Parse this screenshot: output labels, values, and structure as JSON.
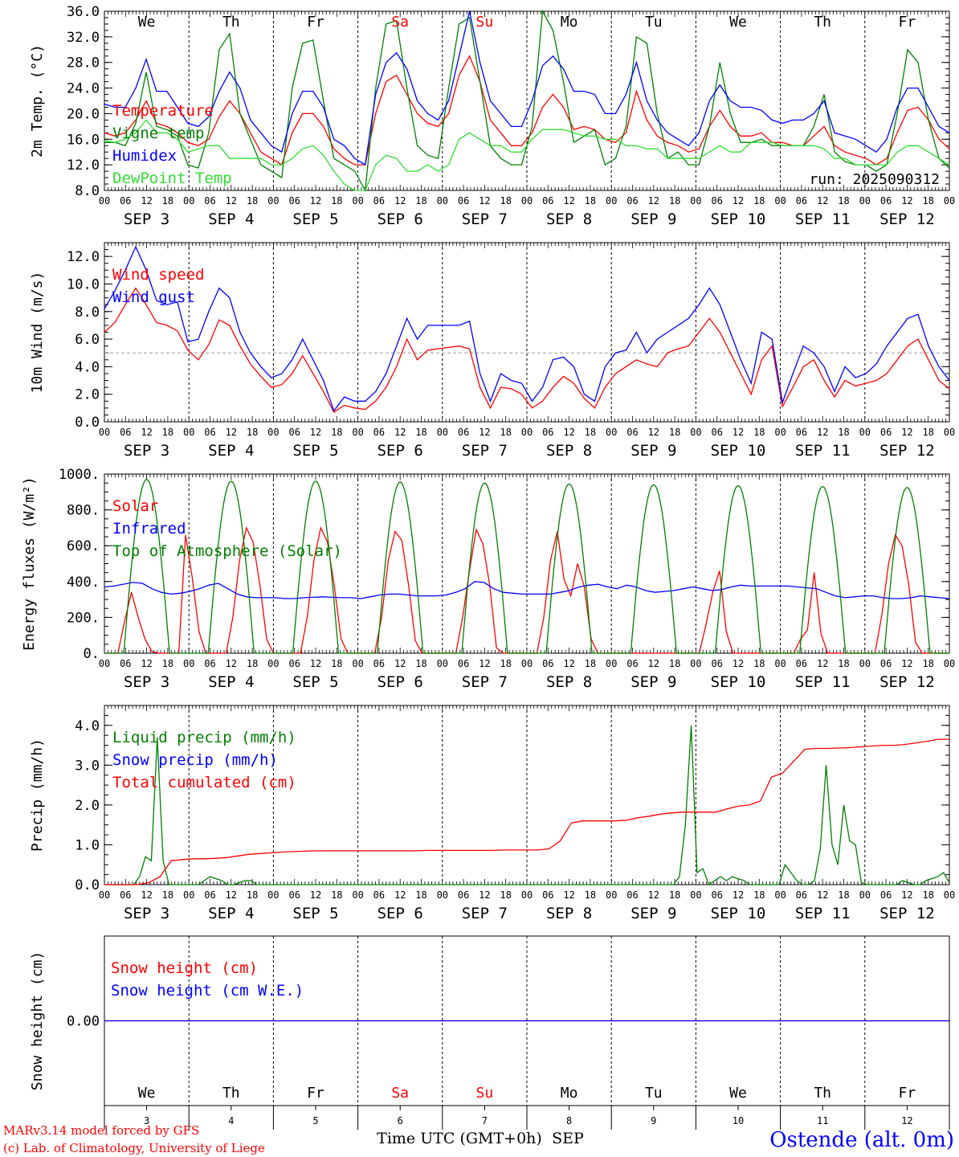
{
  "chart_data": [
    {
      "type": "line",
      "ylabel": "2m Temp. (°C)",
      "ylim": [
        8,
        36
      ],
      "yticks": [
        "8.0",
        "12.0",
        "16.0",
        "20.0",
        "24.0",
        "28.0",
        "32.0",
        "36.0"
      ],
      "run_label": "run: 2025090312",
      "series": [
        {
          "name": "Temperature",
          "color": "#ff0000",
          "values": [
            17,
            16.5,
            17,
            19,
            22,
            18.5,
            18,
            17,
            15.5,
            15,
            16,
            19.5,
            22,
            20,
            17,
            14,
            13,
            12,
            17,
            20,
            20,
            18,
            14.5,
            13,
            12,
            12,
            20,
            25,
            26,
            23,
            20,
            18.5,
            18,
            20,
            26,
            29,
            25,
            19,
            17,
            15,
            15,
            17,
            21,
            23,
            21,
            17.5,
            18,
            17.5,
            16,
            15.5,
            17,
            23.5,
            19,
            16.5,
            15.5,
            15,
            14,
            14.5,
            18,
            20.5,
            18,
            16.5,
            16.5,
            17,
            15.5,
            15.5,
            15,
            15,
            16.5,
            18,
            15,
            14,
            13.5,
            13,
            12,
            13,
            17,
            20.5,
            21,
            19,
            16,
            14.5
          ]
        },
        {
          "name": "Vigne temp",
          "color": "#008000",
          "values": [
            15.5,
            15.5,
            15,
            18.5,
            26.5,
            18,
            17.5,
            16.5,
            12,
            11.5,
            17,
            30,
            32.5,
            20,
            16,
            12,
            11,
            10,
            24,
            31,
            31.5,
            22,
            13,
            12,
            11,
            8,
            24,
            34,
            34.5,
            24,
            15,
            13.5,
            13,
            24,
            34,
            35,
            25,
            15,
            13,
            12,
            12,
            18,
            38,
            33,
            25,
            15.5,
            16.5,
            17.5,
            12,
            13,
            18,
            32,
            31,
            20,
            13,
            14,
            12,
            12,
            18,
            28,
            20,
            15.5,
            15.5,
            16,
            15,
            15,
            15,
            15,
            18,
            23,
            14,
            12.5,
            12,
            12,
            11,
            12,
            20,
            30,
            28,
            19,
            13,
            11.5
          ]
        },
        {
          "name": "Humidex",
          "color": "#0000ff",
          "values": [
            21.5,
            21,
            21,
            24,
            28.5,
            23.5,
            23.5,
            21,
            18.5,
            18,
            19.5,
            23.5,
            26.5,
            24,
            19,
            17,
            15,
            14,
            20,
            23.5,
            23.5,
            21,
            16,
            15,
            13,
            12,
            23,
            28,
            29.5,
            27,
            22,
            20,
            19,
            22,
            29,
            36,
            28,
            22,
            20,
            18,
            18,
            22,
            27.5,
            29,
            27,
            23.5,
            23.5,
            23,
            20,
            20,
            23,
            28,
            22,
            19,
            17,
            16,
            15,
            17,
            22,
            24.5,
            22,
            21,
            21,
            20.5,
            19,
            18.5,
            19,
            19,
            20,
            22,
            17,
            16.5,
            16,
            15,
            14,
            16,
            21,
            24,
            24,
            21,
            18,
            17
          ]
        },
        {
          "name": "DewPoint Temp",
          "color": "#33dd33",
          "values": [
            15.8,
            15.5,
            16,
            17,
            19,
            17,
            17,
            16,
            14,
            14.5,
            15,
            15,
            13,
            13,
            13,
            13,
            12,
            12,
            13,
            14.5,
            15,
            13.5,
            11,
            9,
            8,
            8,
            12,
            13.5,
            13,
            11,
            11,
            12,
            11,
            12,
            16,
            17,
            16,
            15,
            15,
            14,
            14,
            16,
            17.5,
            17.5,
            17.5,
            17,
            16.5,
            16.5,
            16,
            16,
            15,
            15,
            14.5,
            14.5,
            13,
            13,
            13,
            13,
            14,
            15,
            14,
            14,
            15.5,
            15.5,
            15.5,
            15,
            15,
            15,
            15,
            14.5,
            13,
            13,
            12,
            12,
            12,
            12,
            14,
            15,
            15,
            14,
            13,
            12
          ]
        }
      ]
    },
    {
      "type": "line",
      "ylabel": "10m Wind (m/s)",
      "ylim": [
        0,
        13
      ],
      "yticks": [
        "0.0",
        "2.0",
        "4.0",
        "6.0",
        "8.0",
        "10.0",
        "12.0"
      ],
      "reference_line": 5,
      "series": [
        {
          "name": "Wind speed",
          "color": "#ff0000",
          "values": [
            6.5,
            7.2,
            8.5,
            9.7,
            8.5,
            7.2,
            7,
            6.6,
            5.2,
            4.5,
            5.6,
            7.4,
            7,
            5.5,
            4.2,
            3.3,
            2.5,
            2.7,
            3.5,
            4.8,
            3.5,
            2.2,
            0.7,
            1.2,
            1,
            0.9,
            1.5,
            2.5,
            4,
            6,
            4.5,
            5.2,
            5.3,
            5.4,
            5.5,
            5.3,
            2.5,
            1,
            2.5,
            2.4,
            2,
            1,
            1.5,
            2.5,
            3.3,
            2.8,
            1.7,
            1,
            2.5,
            3.5,
            4,
            4.5,
            4.2,
            4,
            5,
            5.3,
            5.5,
            6.5,
            7.5,
            6.5,
            5,
            3.5,
            2,
            4.5,
            5.5,
            1.1,
            2.5,
            4,
            4.5,
            3,
            1.8,
            3,
            2.6,
            2.8,
            3,
            3.5,
            4.5,
            5.5,
            6,
            4.5,
            3,
            2.4
          ]
        },
        {
          "name": "Wind gust",
          "color": "#0000ff",
          "values": [
            8.2,
            9.5,
            11,
            12.7,
            11,
            8.8,
            8.5,
            8.7,
            5.8,
            6,
            8,
            9.7,
            9,
            6.5,
            5,
            4,
            3.2,
            3.5,
            4.5,
            6,
            4.5,
            3,
            0.8,
            1.8,
            1.5,
            1.5,
            2.2,
            3.5,
            5.5,
            7.5,
            6,
            7,
            7,
            7,
            7,
            7.3,
            3.5,
            1.5,
            3.5,
            3,
            2.8,
            1.5,
            2.5,
            4.5,
            4.7,
            4,
            2,
            1.5,
            4,
            5,
            5.2,
            6.5,
            5,
            6,
            6.5,
            7,
            7.5,
            8.5,
            9.7,
            8.5,
            6.5,
            4.5,
            2.8,
            6.5,
            6,
            1.4,
            3.5,
            5.5,
            5,
            4,
            2.2,
            4,
            3.2,
            3.5,
            4.2,
            5.5,
            6.5,
            7.5,
            7.8,
            5.5,
            4,
            3
          ]
        }
      ]
    },
    {
      "type": "line",
      "ylabel": "Energy fluxes (W/m²)",
      "ylim": [
        0,
        1000
      ],
      "yticks": [
        "0.",
        "200.",
        "400.",
        "600.",
        "800.",
        "1000."
      ],
      "series": [
        {
          "name": "Solar",
          "color": "#ff0000",
          "values": [
            0,
            0,
            0,
            180,
            340,
            200,
            80,
            10,
            0,
            0,
            0,
            0,
            660,
            420,
            120,
            0,
            0,
            0,
            0,
            200,
            520,
            700,
            620,
            380,
            80,
            0,
            0,
            0,
            0,
            0,
            200,
            520,
            700,
            620,
            380,
            80,
            0,
            0,
            0,
            0,
            0,
            200,
            520,
            680,
            630,
            380,
            70,
            0,
            0,
            0,
            0,
            0,
            0,
            200,
            460,
            690,
            610,
            380,
            30,
            0,
            0,
            0,
            0,
            0,
            0,
            200,
            520,
            680,
            410,
            320,
            500,
            370,
            80,
            0,
            0,
            0,
            0,
            0,
            0,
            0,
            0,
            0,
            0,
            0,
            0,
            0,
            0,
            0,
            0,
            160,
            340,
            460,
            120,
            0,
            0,
            0,
            0,
            0,
            0,
            0,
            0,
            0,
            0,
            80,
            130,
            450,
            110,
            0,
            0,
            0,
            0,
            0,
            0,
            0,
            0,
            210,
            500,
            660,
            600,
            380,
            60,
            0,
            0,
            0,
            0,
            0
          ]
        },
        {
          "name": "Infrared",
          "color": "#0000ff",
          "values": [
            370,
            375,
            385,
            395,
            390,
            360,
            340,
            330,
            335,
            345,
            360,
            380,
            390,
            360,
            330,
            315,
            310,
            310,
            310,
            305,
            305,
            310,
            312,
            315,
            312,
            310,
            310,
            305,
            315,
            325,
            330,
            330,
            325,
            320,
            320,
            320,
            325,
            340,
            360,
            400,
            395,
            360,
            340,
            335,
            330,
            330,
            330,
            330,
            340,
            350,
            370,
            380,
            385,
            370,
            360,
            380,
            370,
            350,
            340,
            345,
            350,
            360,
            370,
            360,
            350,
            355,
            370,
            380,
            375,
            375,
            375,
            375,
            375,
            370,
            365,
            360,
            340,
            320,
            310,
            315,
            320,
            320,
            310,
            305,
            305,
            310,
            320,
            315,
            310,
            305
          ]
        },
        {
          "name": "Top of Atmosphere (Solar)",
          "color": "#008000",
          "values": [
            970,
            960,
            960,
            955,
            950,
            945,
            940,
            935,
            930,
            925,
            920,
            915
          ]
        }
      ]
    },
    {
      "type": "line",
      "ylabel": "Precip (mm/h)",
      "ylim": [
        0,
        4.5
      ],
      "yticks": [
        "0.0",
        "1.0",
        "2.0",
        "3.0",
        "4.0"
      ],
      "series": [
        {
          "name": "Liquid precip (mm/h)",
          "color": "#008000",
          "values": [
            0,
            0,
            0,
            0,
            0,
            0,
            0.2,
            0.7,
            0.6,
            3.7,
            0.6,
            0,
            0,
            0,
            0,
            0,
            0,
            0.1,
            0.2,
            0.15,
            0.1,
            0,
            0,
            0.05,
            0.1,
            0.1,
            0,
            0,
            0,
            0,
            0,
            0,
            0,
            0,
            0,
            0,
            0,
            0,
            0,
            0,
            0,
            0,
            0,
            0,
            0,
            0,
            0,
            0,
            0,
            0,
            0,
            0,
            0,
            0,
            0,
            0,
            0,
            0,
            0,
            0,
            0,
            0,
            0,
            0,
            0,
            0,
            0,
            0,
            0,
            0,
            0,
            0,
            0,
            0,
            0,
            0,
            0,
            0,
            0,
            0,
            0,
            0,
            0,
            0,
            0,
            0,
            0,
            0,
            0,
            0,
            0,
            0,
            0,
            0,
            0,
            0,
            0,
            0,
            0.2,
            1.5,
            4,
            0.3,
            0.4,
            0,
            0.1,
            0.2,
            0.1,
            0.2,
            0.15,
            0.1,
            0,
            0,
            0,
            0,
            0,
            0,
            0.5,
            0.3,
            0.1,
            0,
            0,
            0.1,
            0.9,
            3,
            1,
            0.5,
            2,
            1.1,
            1,
            0.05,
            0,
            0,
            0,
            0,
            0,
            0,
            0.1,
            0.05,
            0,
            0,
            0.1,
            0.15,
            0.2,
            0.3,
            0.05
          ]
        },
        {
          "name": "Snow precip (mm/h)",
          "color": "#0000ff",
          "values": [
            0
          ]
        },
        {
          "name": "Total cumulated (cm)",
          "color": "#ff0000",
          "values": [
            0,
            0,
            0,
            0,
            0.05,
            0.2,
            0.6,
            0.63,
            0.65,
            0.65,
            0.66,
            0.68,
            0.72,
            0.76,
            0.78,
            0.8,
            0.82,
            0.83,
            0.84,
            0.85,
            0.85,
            0.85,
            0.85,
            0.85,
            0.85,
            0.85,
            0.85,
            0.85,
            0.85,
            0.86,
            0.86,
            0.86,
            0.86,
            0.86,
            0.86,
            0.86,
            0.87,
            0.87,
            0.87,
            0.87,
            0.9,
            1.1,
            1.55,
            1.6,
            1.6,
            1.6,
            1.6,
            1.62,
            1.68,
            1.72,
            1.77,
            1.8,
            1.82,
            1.82,
            1.82,
            1.82,
            1.9,
            1.97,
            2,
            2.1,
            2.7,
            2.8,
            3.1,
            3.4,
            3.42,
            3.42,
            3.43,
            3.44,
            3.46,
            3.48,
            3.5,
            3.5,
            3.52,
            3.56,
            3.6,
            3.65,
            3.65
          ]
        }
      ]
    },
    {
      "type": "line",
      "ylabel": "Snow height (cm)",
      "yticks": [
        "0.00"
      ],
      "series": [
        {
          "name": "Snow height (cm)",
          "color": "#ff0000",
          "values": [
            0,
            0
          ]
        },
        {
          "name": "Snow height (cm W.E.)",
          "color": "#0000ff",
          "values": [
            0,
            0
          ]
        }
      ]
    }
  ],
  "days": {
    "weekday_labels": [
      "We",
      "Th",
      "Fr",
      "Sa",
      "Su",
      "Mo",
      "Tu",
      "We",
      "Th",
      "Fr"
    ],
    "weekday_colors": [
      "#000000",
      "#000000",
      "#000000",
      "#ff0000",
      "#ff0000",
      "#000000",
      "#000000",
      "#000000",
      "#000000",
      "#000000"
    ],
    "date_labels": [
      "SEP  3",
      "SEP  4",
      "SEP  5",
      "SEP  6",
      "SEP  7",
      "SEP  8",
      "SEP  9",
      "SEP 10",
      "SEP 11",
      "SEP 12"
    ],
    "hour_labels": [
      "00",
      "06",
      "12",
      "18"
    ],
    "hour_end_label": "00",
    "day_numbers": [
      "3",
      "4",
      "5",
      "6",
      "7",
      "8",
      "9",
      "10",
      "11",
      "12"
    ]
  },
  "xlabel": "Time UTC (GMT+0h)",
  "xlabel_month": "SEP",
  "credits": {
    "line1": "MARv3.14 model forced by GFS",
    "line2": "(c) Lab. of Climatology, University of Liege"
  },
  "station": "Ostende (alt. 0m)"
}
